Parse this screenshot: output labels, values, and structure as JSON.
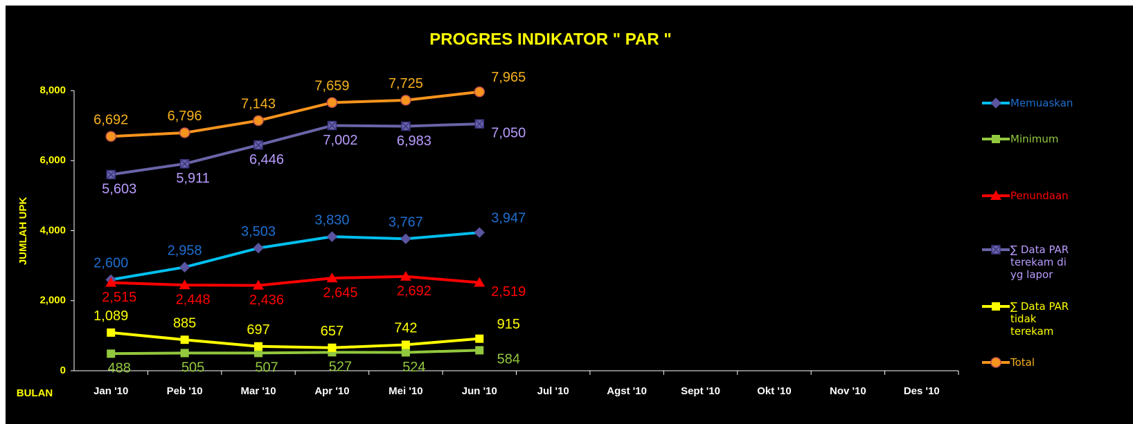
{
  "chart_data": {
    "type": "line",
    "title": "PROGRES INDIKATOR \" PAR \"",
    "y_label": "JUMLAH UPK",
    "x_label": "BULAN",
    "categories": [
      "Jan '10",
      "Peb '10",
      "Mar '10",
      "Apr '10",
      "Mei '10",
      "Jun '10",
      "Jul '10",
      "Agst '10",
      "Sept '10",
      "Okt '10",
      "Nov '10",
      "Des '10"
    ],
    "ylim": [
      0,
      8000
    ],
    "yticks": [
      0,
      {
        "value": 2000,
        "label": "2,000"
      },
      {
        "value": 4000,
        "label": "4,000"
      },
      {
        "value": 6000,
        "label": "6,000"
      },
      {
        "value": 8000,
        "label": "8,000"
      }
    ],
    "series": [
      {
        "name": "Memuaskan",
        "color": "#00bfef",
        "label_color": "#1e6fd0",
        "marker": "diamond",
        "values": [
          2600,
          2958,
          3503,
          3830,
          3767,
          3947,
          null,
          null,
          null,
          null,
          null,
          null
        ],
        "value_labels": [
          "2,600",
          "2,958",
          "3,503",
          "3,830",
          "3,767",
          "3,947",
          null,
          null,
          null,
          null,
          null,
          null
        ]
      },
      {
        "name": "Minimum",
        "color": "#92c83e",
        "label_color": "#92c83e",
        "marker": "square",
        "values": [
          488,
          505,
          507,
          527,
          524,
          584,
          null,
          null,
          null,
          null,
          null,
          null
        ],
        "value_labels": [
          "488",
          "505",
          "507",
          "527",
          "524",
          "584",
          null,
          null,
          null,
          null,
          null,
          null
        ]
      },
      {
        "name": "Penundaan",
        "color": "#ff0000",
        "label_color": "#ff0000",
        "marker": "triangle",
        "values": [
          2515,
          2448,
          2436,
          2645,
          2692,
          2519,
          null,
          null,
          null,
          null,
          null,
          null
        ],
        "value_labels": [
          "2,515",
          "2,448",
          "2,436",
          "2,645",
          "2,692",
          "2,519",
          null,
          null,
          null,
          null,
          null,
          null
        ]
      },
      {
        "name": "∑ Data PAR terekam di yg lapor",
        "color": "#6a64a8",
        "label_color": "#b99cff",
        "marker": "xsquare",
        "values": [
          5603,
          5911,
          6446,
          7002,
          6983,
          7050,
          null,
          null,
          null,
          null,
          null,
          null
        ],
        "value_labels": [
          "5,603",
          "5,911",
          "6,446",
          "7,002",
          "6,983",
          "7,050",
          null,
          null,
          null,
          null,
          null,
          null
        ]
      },
      {
        "name": "∑ Data PAR tidak terekam",
        "color": "#ffff00",
        "label_color": "#ffff00",
        "marker": "square",
        "values": [
          1089,
          885,
          697,
          657,
          742,
          915,
          null,
          null,
          null,
          null,
          null,
          null
        ],
        "value_labels": [
          "1,089",
          "885",
          "697",
          "657",
          "742",
          "915",
          null,
          null,
          null,
          null,
          null,
          null
        ]
      },
      {
        "name": "Total",
        "color": "#f7941d",
        "label_color": "#f7b21d",
        "marker": "circle",
        "values": [
          6692,
          6796,
          7143,
          7659,
          7725,
          7965,
          null,
          null,
          null,
          null,
          null,
          null
        ],
        "value_labels": [
          "6,692",
          "6,796",
          "7,143",
          "7,659",
          "7,725",
          "7,965",
          null,
          null,
          null,
          null,
          null,
          null
        ]
      }
    ]
  }
}
